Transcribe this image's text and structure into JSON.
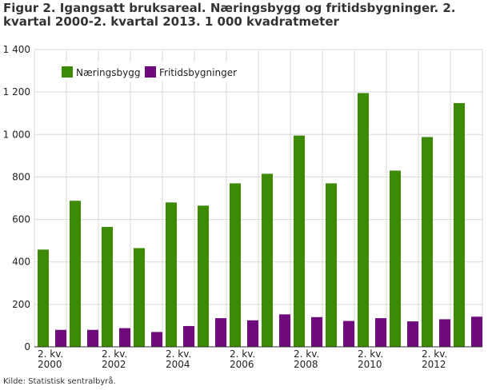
{
  "figure": {
    "title": "Figur 2. Igangsatt bruksareal. Næringsbygg og fritidsbygninger. 2. kvartal 2000-2. kvartal 2013. 1 000 kvadratmeter",
    "source": "Kilde: Statistisk sentralbyrå."
  },
  "chart_data": {
    "type": "bar",
    "title": "Figur 2. Igangsatt bruksareal. Næringsbygg og fritidsbygninger. 2. kvartal 2000-2. kvartal 2013. 1 000 kvadratmeter",
    "xlabel": "",
    "ylabel": "",
    "categories": [
      "2000",
      "2001",
      "2002",
      "2003",
      "2004",
      "2005",
      "2006",
      "2007",
      "2008",
      "2009",
      "2010",
      "2011",
      "2012",
      "2013"
    ],
    "x_tick_labels": [
      {
        "index": 0,
        "line1": "2. kv.",
        "line2": "2000"
      },
      {
        "index": 2,
        "line1": "2. kv.",
        "line2": "2002"
      },
      {
        "index": 4,
        "line1": "2. kv.",
        "line2": "2004"
      },
      {
        "index": 6,
        "line1": "2. kv.",
        "line2": "2006"
      },
      {
        "index": 8,
        "line1": "2. kv.",
        "line2": "2008"
      },
      {
        "index": 10,
        "line1": "2. kv.",
        "line2": "2010"
      },
      {
        "index": 12,
        "line1": "2. kv.",
        "line2": "2012"
      }
    ],
    "series": [
      {
        "name": "Næringsbygg",
        "color": "#3d8a06",
        "values": [
          458,
          688,
          565,
          465,
          680,
          665,
          770,
          815,
          995,
          770,
          1195,
          830,
          988,
          1148
        ]
      },
      {
        "name": "Fritidsbygninger",
        "color": "#6e0a7c",
        "values": [
          80,
          80,
          88,
          70,
          98,
          135,
          125,
          153,
          140,
          122,
          135,
          120,
          130,
          142
        ]
      }
    ],
    "ylim": [
      0,
      1400
    ],
    "yticks": [
      0,
      200,
      400,
      600,
      800,
      1000,
      1200,
      1400
    ],
    "ytick_labels": [
      "0",
      "200",
      "400",
      "600",
      "800",
      "1 000",
      "1 200",
      "1 400"
    ],
    "grid": "vertical and horizontal",
    "legend_placement": "top-left"
  }
}
